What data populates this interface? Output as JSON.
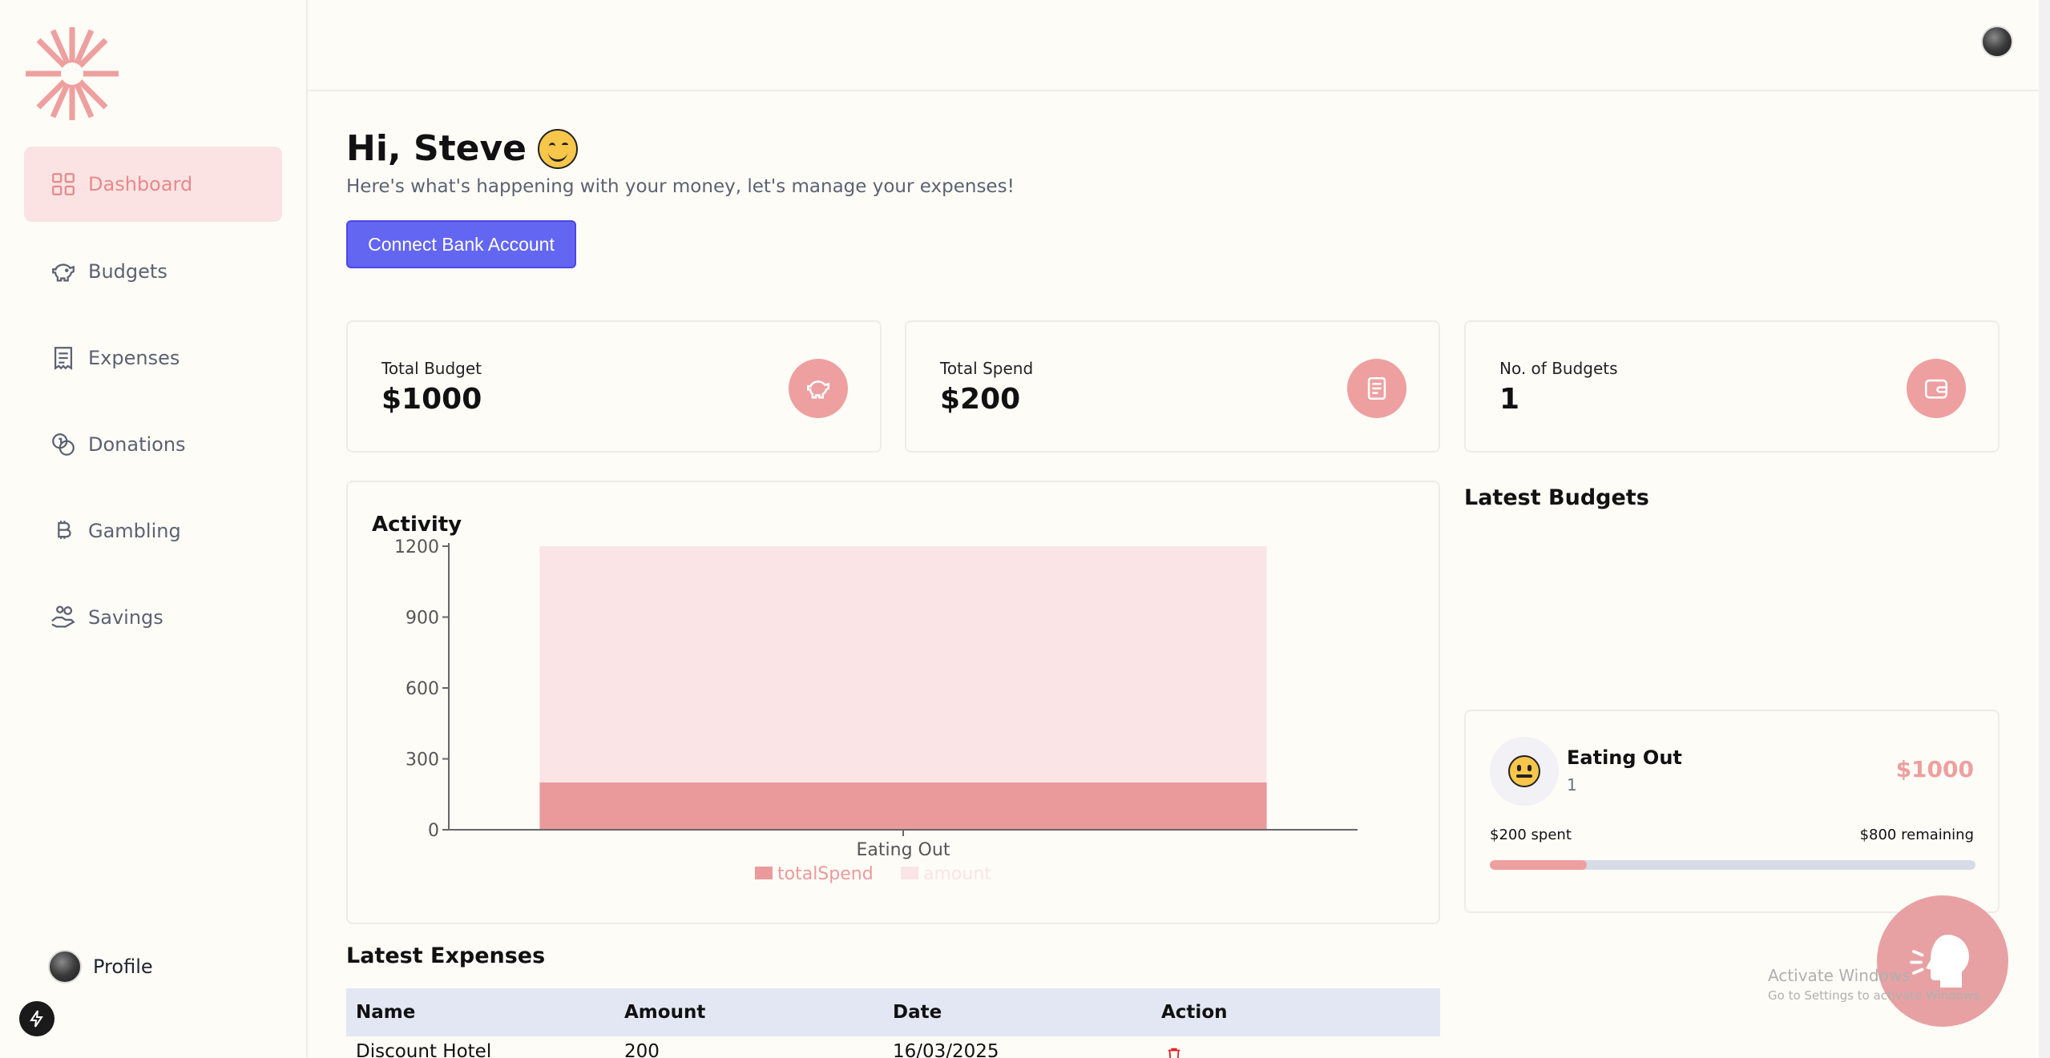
{
  "sidebar": {
    "items": [
      {
        "label": "Dashboard",
        "icon": "dashboard-grid-icon"
      },
      {
        "label": "Budgets",
        "icon": "piggy-bank-icon"
      },
      {
        "label": "Expenses",
        "icon": "receipt-icon"
      },
      {
        "label": "Donations",
        "icon": "coins-icon"
      },
      {
        "label": "Gambling",
        "icon": "bitcoin-icon"
      },
      {
        "label": "Savings",
        "icon": "hand-coins-icon"
      }
    ],
    "profile_label": "Profile"
  },
  "header": {
    "greeting": "Hi, Steve",
    "subtitle": "Here's what's happening with your money, let's manage your expenses!",
    "connect_button": "Connect Bank Account"
  },
  "stats": [
    {
      "label": "Total Budget",
      "value": "$1000",
      "icon": "piggy-bank-icon"
    },
    {
      "label": "Total Spend",
      "value": "$200",
      "icon": "receipt-icon"
    },
    {
      "label": "No. of Budgets",
      "value": "1",
      "icon": "wallet-icon"
    }
  ],
  "activity": {
    "title": "Activity"
  },
  "chart_data": {
    "type": "bar",
    "categories": [
      "Eating Out"
    ],
    "series": [
      {
        "name": "totalSpend",
        "values": [
          200
        ],
        "color": "#eb9a9c"
      },
      {
        "name": "amount",
        "values": [
          1000
        ],
        "color": "#fae4e5"
      }
    ],
    "stacked": true,
    "yticks": [
      "0",
      "300",
      "600",
      "900",
      "1200"
    ],
    "ylim": [
      0,
      1200
    ],
    "legend": "bottom"
  },
  "latest_budgets": {
    "title": "Latest Budgets",
    "items": [
      {
        "name": "Eating Out",
        "count": "1",
        "amount": "$1000",
        "spent": "$200 spent",
        "remaining": "$800 remaining",
        "progress": 0.2
      }
    ]
  },
  "latest_expenses": {
    "title": "Latest Expenses",
    "columns": [
      "Name",
      "Amount",
      "Date",
      "Action"
    ],
    "rows": [
      {
        "name": "Discount Hotel",
        "amount": "200",
        "date": "16/03/2025"
      }
    ]
  },
  "watermark": {
    "line1": "Activate Windows",
    "line2": "Go to Settings to activate Windows."
  },
  "colors": {
    "accent": "#ee9f9f",
    "primary_button": "#6366f1",
    "active_nav_bg": "#fbe3e3"
  }
}
